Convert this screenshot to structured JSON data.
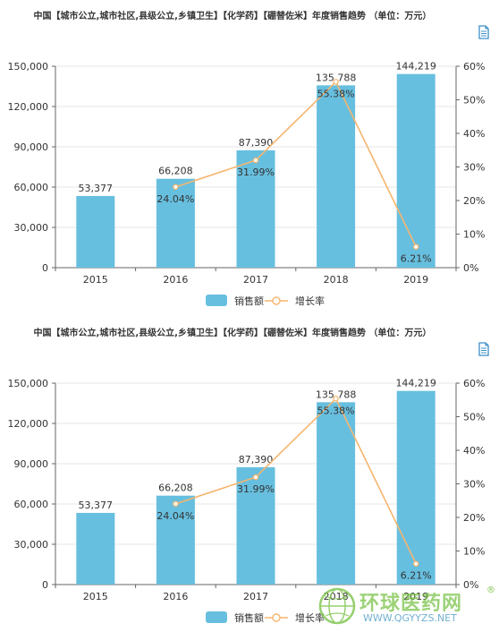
{
  "chart_data": [
    {
      "type": "bar",
      "title": "中国【城市公立,城市社区,县级公立,乡镇卫生】【化学药】【硼替佐米】年度销售趋势 （单位：万元）",
      "categories": [
        "2015",
        "2016",
        "2017",
        "2018",
        "2019"
      ],
      "series": [
        {
          "name": "销售额",
          "type": "bar",
          "axis": "left",
          "values": [
            53377,
            66208,
            87390,
            135788,
            144219
          ],
          "labels": [
            "53,377",
            "66,208",
            "87,390",
            "135,788",
            "144,219"
          ]
        },
        {
          "name": "增长率",
          "type": "line",
          "axis": "right",
          "values": [
            null,
            24.04,
            31.99,
            55.38,
            6.21
          ],
          "labels": [
            "",
            "24.04%",
            "31.99%",
            "55.38%",
            "6.21%"
          ]
        }
      ],
      "left_axis": {
        "ylim": [
          0,
          150000
        ],
        "ticks": [
          "0",
          "30,000",
          "60,000",
          "90,000",
          "120,000",
          "150,000"
        ]
      },
      "right_axis": {
        "ylim": [
          0,
          60
        ],
        "ticks": [
          "0%",
          "10%",
          "20%",
          "30%",
          "40%",
          "50%",
          "60%"
        ]
      },
      "legend_position": "bottom-center",
      "colors": {
        "bar": "#67bfdf",
        "line": "#f6b56e"
      }
    },
    {
      "type": "bar",
      "title": "中国【城市公立,城市社区,县级公立,乡镇卫生】【化学药】【硼替佐米】年度销售趋势 （单位：万元）",
      "categories": [
        "2015",
        "2016",
        "2017",
        "2018",
        "2019"
      ],
      "series": [
        {
          "name": "销售额",
          "type": "bar",
          "axis": "left",
          "values": [
            53377,
            66208,
            87390,
            135788,
            144219
          ],
          "labels": [
            "53,377",
            "66,208",
            "87,390",
            "135,788",
            "144,219"
          ]
        },
        {
          "name": "增长率",
          "type": "line",
          "axis": "right",
          "values": [
            null,
            24.04,
            31.99,
            55.38,
            6.21
          ],
          "labels": [
            "",
            "24.04%",
            "31.99%",
            "55.38%",
            "6.21%"
          ]
        }
      ],
      "left_axis": {
        "ylim": [
          0,
          150000
        ],
        "ticks": [
          "0",
          "30,000",
          "60,000",
          "90,000",
          "120,000",
          "150,000"
        ]
      },
      "right_axis": {
        "ylim": [
          0,
          60
        ],
        "ticks": [
          "0%",
          "10%",
          "20%",
          "30%",
          "40%",
          "50%",
          "60%"
        ]
      },
      "legend_position": "bottom-center",
      "colors": {
        "bar": "#67bfdf",
        "line": "#f6b56e"
      }
    }
  ],
  "watermark": {
    "text_cn": "环球医药网",
    "text_en": "WWW.QGYYZS.NET",
    "registered": "®",
    "icon": "globe-leaf-logo"
  },
  "icons": {
    "export": "document-icon"
  }
}
